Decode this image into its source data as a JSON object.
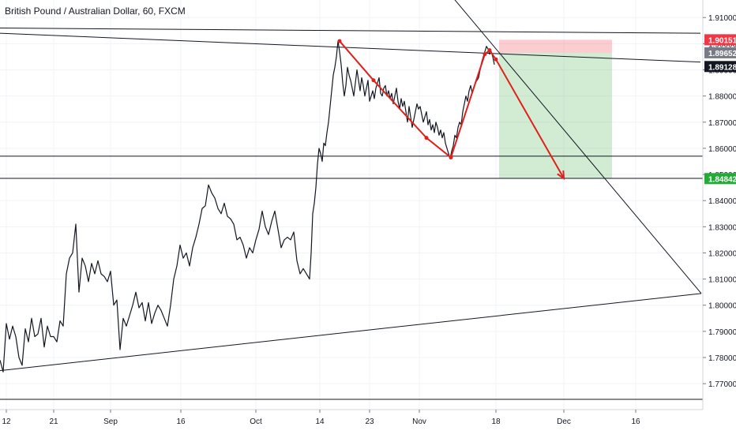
{
  "header": {
    "symbol_title": "British Pound / Australian Dollar, 60, FXCM"
  },
  "chart_data": {
    "type": "line",
    "title": "British Pound / Australian Dollar, 60, FXCM",
    "xlabel": "",
    "ylabel": "",
    "x_tick_labels": [
      "12",
      "21",
      "Sep",
      "16",
      "Oct",
      "14",
      "23",
      "Nov",
      "18",
      "Dec",
      "16"
    ],
    "y_ticks": [
      1.77,
      1.78,
      1.79,
      1.8,
      1.81,
      1.82,
      1.83,
      1.84,
      1.85,
      1.86,
      1.87,
      1.88,
      1.89,
      1.9,
      1.91
    ],
    "y_tick_labels": [
      "1.77000",
      "1.78000",
      "1.79000",
      "1.80000",
      "1.81000",
      "1.82000",
      "1.83000",
      "1.84000",
      "1.85000",
      "1.86000",
      "1.87000",
      "1.88000",
      "1.89000",
      "1.90000",
      "1.91000"
    ],
    "ylim": [
      1.763,
      1.915
    ],
    "grid": true,
    "price_tags": [
      {
        "label": "1.90151",
        "value": 1.90151,
        "color": "#f23645",
        "text_color": "#ffffff"
      },
      {
        "label": "1.89652",
        "value": 1.89652,
        "color": "#787b86",
        "text_color": "#ffffff"
      },
      {
        "label": "1.89128",
        "value": 1.89128,
        "color": "#131722",
        "text_color": "#ffffff"
      },
      {
        "label": "1.84842",
        "value": 1.84842,
        "color": "#22ab36",
        "text_color": "#ffffff"
      }
    ],
    "series": [
      {
        "name": "",
        "color": "#131722",
        "points": [
          [
            0,
            1.779
          ],
          [
            4,
            1.7745
          ],
          [
            8,
            1.793
          ],
          [
            12,
            1.787
          ],
          [
            16,
            1.792
          ],
          [
            20,
            1.788
          ],
          [
            24,
            1.78
          ],
          [
            28,
            1.777
          ],
          [
            32,
            1.791
          ],
          [
            36,
            1.786
          ],
          [
            40,
            1.795
          ],
          [
            44,
            1.788
          ],
          [
            48,
            1.789
          ],
          [
            52,
            1.795
          ],
          [
            56,
            1.784
          ],
          [
            60,
            1.792
          ],
          [
            64,
            1.788
          ],
          [
            68,
            1.788
          ],
          [
            72,
            1.786
          ],
          [
            76,
            1.794
          ],
          [
            80,
            1.792
          ],
          [
            84,
            1.812
          ],
          [
            88,
            1.818
          ],
          [
            92,
            1.82
          ],
          [
            96,
            1.831
          ],
          [
            100,
            1.805
          ],
          [
            104,
            1.818
          ],
          [
            108,
            1.815
          ],
          [
            112,
            1.809
          ],
          [
            116,
            1.816
          ],
          [
            120,
            1.812
          ],
          [
            124,
            1.817
          ],
          [
            128,
            1.812
          ],
          [
            132,
            1.811
          ],
          [
            136,
            1.809
          ],
          [
            140,
            1.813
          ],
          [
            144,
            1.8
          ],
          [
            148,
            1.802
          ],
          [
            152,
            1.783
          ],
          [
            156,
            1.795
          ],
          [
            160,
            1.792
          ],
          [
            164,
            1.796
          ],
          [
            168,
            1.8
          ],
          [
            172,
            1.805
          ],
          [
            176,
            1.799
          ],
          [
            180,
            1.801
          ],
          [
            184,
            1.794
          ],
          [
            188,
            1.801
          ],
          [
            192,
            1.793
          ],
          [
            196,
            1.797
          ],
          [
            200,
            1.8
          ],
          [
            204,
            1.798
          ],
          [
            208,
            1.795
          ],
          [
            212,
            1.792
          ],
          [
            216,
            1.8
          ],
          [
            220,
            1.81
          ],
          [
            224,
            1.815
          ],
          [
            228,
            1.823
          ],
          [
            232,
            1.818
          ],
          [
            236,
            1.82
          ],
          [
            240,
            1.815
          ],
          [
            244,
            1.822
          ],
          [
            248,
            1.826
          ],
          [
            252,
            1.831
          ],
          [
            256,
            1.837
          ],
          [
            260,
            1.838
          ],
          [
            264,
            1.846
          ],
          [
            268,
            1.843
          ],
          [
            272,
            1.841
          ],
          [
            276,
            1.837
          ],
          [
            280,
            1.835
          ],
          [
            284,
            1.839
          ],
          [
            288,
            1.834
          ],
          [
            292,
            1.833
          ],
          [
            296,
            1.831
          ],
          [
            300,
            1.825
          ],
          [
            304,
            1.826
          ],
          [
            308,
            1.823
          ],
          [
            312,
            1.818
          ],
          [
            316,
            1.822
          ],
          [
            320,
            1.82
          ],
          [
            324,
            1.825
          ],
          [
            328,
            1.829
          ],
          [
            332,
            1.836
          ],
          [
            336,
            1.83
          ],
          [
            340,
            1.827
          ],
          [
            344,
            1.832
          ],
          [
            348,
            1.836
          ],
          [
            352,
            1.829
          ],
          [
            356,
            1.822
          ],
          [
            360,
            1.825
          ],
          [
            364,
            1.826
          ],
          [
            368,
            1.825
          ],
          [
            372,
            1.828
          ],
          [
            376,
            1.817
          ],
          [
            380,
            1.812
          ],
          [
            384,
            1.814
          ],
          [
            388,
            1.812
          ],
          [
            392,
            1.81
          ],
          [
            394,
            1.82
          ],
          [
            396,
            1.835
          ],
          [
            398,
            1.839
          ],
          [
            400,
            1.845
          ],
          [
            402,
            1.854
          ],
          [
            404,
            1.86
          ],
          [
            406,
            1.858
          ],
          [
            408,
            1.855
          ],
          [
            410,
            1.862
          ],
          [
            412,
            1.861
          ],
          [
            414,
            1.866
          ],
          [
            416,
            1.87
          ],
          [
            418,
            1.876
          ],
          [
            420,
            1.882
          ],
          [
            422,
            1.888
          ],
          [
            424,
            1.891
          ],
          [
            426,
            1.895
          ],
          [
            428,
            1.901
          ],
          [
            430,
            1.897
          ],
          [
            432,
            1.892
          ],
          [
            434,
            1.885
          ],
          [
            436,
            1.88
          ],
          [
            438,
            1.884
          ],
          [
            440,
            1.891
          ],
          [
            442,
            1.888
          ],
          [
            444,
            1.886
          ],
          [
            446,
            1.883
          ],
          [
            448,
            1.88
          ],
          [
            450,
            1.885
          ],
          [
            452,
            1.89
          ],
          [
            454,
            1.886
          ],
          [
            456,
            1.882
          ],
          [
            458,
            1.887
          ],
          [
            460,
            1.884
          ],
          [
            462,
            1.88
          ],
          [
            464,
            1.883
          ],
          [
            466,
            1.886
          ],
          [
            468,
            1.878
          ],
          [
            470,
            1.88
          ],
          [
            472,
            1.882
          ],
          [
            474,
            1.879
          ],
          [
            476,
            1.883
          ],
          [
            478,
            1.885
          ],
          [
            480,
            1.887
          ],
          [
            482,
            1.881
          ],
          [
            484,
            1.88
          ],
          [
            486,
            1.883
          ],
          [
            488,
            1.884
          ],
          [
            490,
            1.88
          ],
          [
            492,
            1.882
          ],
          [
            494,
            1.879
          ],
          [
            496,
            1.881
          ],
          [
            498,
            1.877
          ],
          [
            500,
            1.88
          ],
          [
            502,
            1.883
          ],
          [
            504,
            1.878
          ],
          [
            506,
            1.875
          ],
          [
            508,
            1.879
          ],
          [
            510,
            1.876
          ],
          [
            512,
            1.878
          ],
          [
            514,
            1.874
          ],
          [
            516,
            1.87
          ],
          [
            518,
            1.876
          ],
          [
            520,
            1.872
          ],
          [
            522,
            1.868
          ],
          [
            524,
            1.871
          ],
          [
            526,
            1.874
          ],
          [
            528,
            1.877
          ],
          [
            530,
            1.875
          ],
          [
            532,
            1.876
          ],
          [
            534,
            1.873
          ],
          [
            536,
            1.87
          ],
          [
            538,
            1.872
          ],
          [
            540,
            1.874
          ],
          [
            542,
            1.869
          ],
          [
            544,
            1.871
          ],
          [
            546,
            1.867
          ],
          [
            548,
            1.869
          ],
          [
            550,
            1.866
          ],
          [
            552,
            1.87
          ],
          [
            554,
            1.868
          ],
          [
            556,
            1.865
          ],
          [
            558,
            1.867
          ],
          [
            560,
            1.864
          ],
          [
            562,
            1.866
          ],
          [
            564,
            1.862
          ],
          [
            566,
            1.86
          ],
          [
            568,
            1.858
          ],
          [
            570,
            1.856
          ],
          [
            572,
            1.859
          ],
          [
            574,
            1.861
          ],
          [
            576,
            1.865
          ],
          [
            578,
            1.864
          ],
          [
            580,
            1.868
          ],
          [
            582,
            1.87
          ],
          [
            584,
            1.869
          ],
          [
            586,
            1.874
          ],
          [
            588,
            1.877
          ],
          [
            590,
            1.88
          ],
          [
            592,
            1.878
          ],
          [
            594,
            1.882
          ],
          [
            596,
            1.884
          ],
          [
            598,
            1.881
          ],
          [
            600,
            1.883
          ],
          [
            602,
            1.885
          ],
          [
            604,
            1.886
          ],
          [
            606,
            1.887
          ],
          [
            608,
            1.89
          ],
          [
            610,
            1.893
          ],
          [
            612,
            1.895
          ],
          [
            614,
            1.897
          ],
          [
            616,
            1.899
          ],
          [
            618,
            1.898
          ],
          [
            620,
            1.896
          ],
          [
            622,
            1.897
          ],
          [
            624,
            1.895
          ],
          [
            626,
            1.892
          ]
        ]
      }
    ],
    "drawings": {
      "pattern_points": [
        [
          430,
          1.901
        ],
        [
          473,
          1.886
        ],
        [
          540,
          1.864
        ],
        [
          571,
          1.8565
        ],
        [
          614,
          1.896
        ],
        [
          620,
          1.8975
        ],
        [
          628,
          1.894
        ]
      ],
      "arrow_target": [
        714,
        1.8485
      ],
      "resistance_lines": [
        {
          "from": [
            0,
            1.906
          ],
          "to": [
            887,
            1.904
          ]
        },
        {
          "from": [
            0,
            1.904
          ],
          "to": [
            887,
            1.893
          ]
        }
      ],
      "support_lines": [
        {
          "value": 1.857
        },
        {
          "value": 1.8485
        }
      ],
      "bottom_line": {
        "value": 1.764
      },
      "rising_trend": {
        "from": [
          0,
          1.775
        ],
        "to": [
          888,
          1.8045
        ]
      },
      "falling_trend": {
        "from": [
          567,
          1.92
        ],
        "to": [
          888,
          1.8045
        ]
      },
      "position": {
        "x_start": 632,
        "x_end": 775,
        "entry": 1.8965,
        "stop": 1.9015,
        "target": 1.8484
      }
    }
  }
}
